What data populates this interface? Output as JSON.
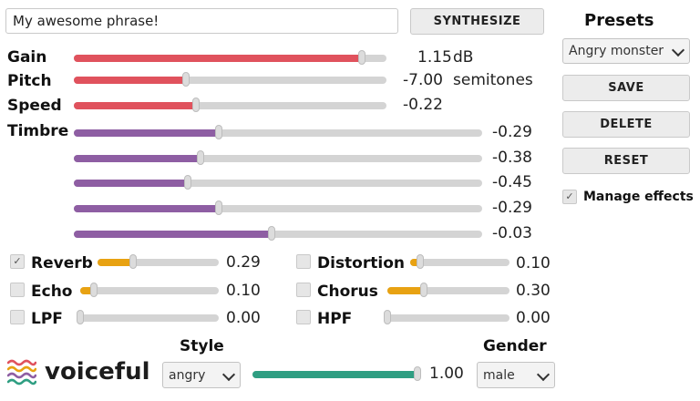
{
  "phrase_input": {
    "value": "My awesome phrase!"
  },
  "synthesize_label": "SYNTHESIZE",
  "sliders": {
    "gain": {
      "label": "Gain",
      "value_text": "1.15",
      "unit": "dB",
      "fraction": 0.92
    },
    "pitch": {
      "label": "Pitch",
      "value_text": "-7.00",
      "unit": "semitones",
      "fraction": 0.36
    },
    "speed": {
      "label": "Speed",
      "value_text": "-0.22",
      "unit": "",
      "fraction": 0.39
    }
  },
  "timbre": {
    "label": "Timbre",
    "rows": [
      {
        "value_text": "-0.29",
        "fraction": 0.355
      },
      {
        "value_text": "-0.38",
        "fraction": 0.31
      },
      {
        "value_text": "-0.45",
        "fraction": 0.28
      },
      {
        "value_text": "-0.29",
        "fraction": 0.355
      },
      {
        "value_text": "-0.03",
        "fraction": 0.485
      }
    ]
  },
  "effects": {
    "reverb": {
      "label": "Reverb",
      "checked": true,
      "value_text": "0.29",
      "fraction": 0.29
    },
    "distortion": {
      "label": "Distortion",
      "checked": false,
      "value_text": "0.10",
      "fraction": 0.1
    },
    "echo": {
      "label": "Echo",
      "checked": false,
      "value_text": "0.10",
      "fraction": 0.1
    },
    "chorus": {
      "label": "Chorus",
      "checked": false,
      "value_text": "0.30",
      "fraction": 0.3
    },
    "lpf": {
      "label": "LPF",
      "checked": false,
      "value_text": "0.00",
      "fraction": 0.0
    },
    "hpf": {
      "label": "HPF",
      "checked": false,
      "value_text": "0.00",
      "fraction": 0.0
    }
  },
  "presets": {
    "title": "Presets",
    "selected": "Angry monster",
    "save_label": "SAVE",
    "delete_label": "DELETE",
    "reset_label": "RESET",
    "manage_effects_label": "Manage effects",
    "manage_effects_checked": true
  },
  "style": {
    "label": "Style",
    "selected": "angry",
    "value_text": "1.00",
    "fraction": 0.98
  },
  "gender": {
    "label": "Gender",
    "selected": "male"
  },
  "logo": {
    "text": "voiceful"
  },
  "colors": {
    "red": "#e0525d",
    "purple": "#8e5ea3",
    "orange": "#e8a212",
    "green": "#2f9e82",
    "track": "#d4d4d4"
  }
}
